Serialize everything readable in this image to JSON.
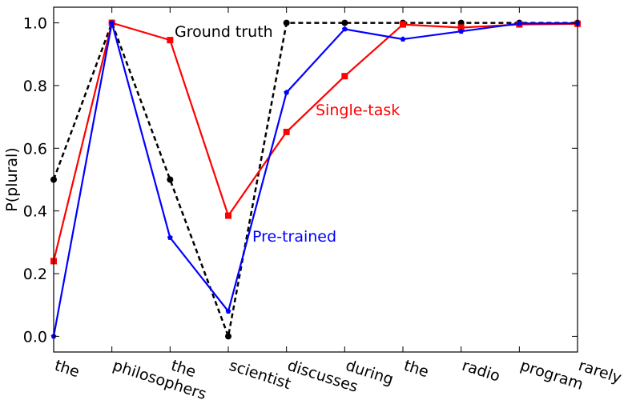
{
  "chart_data": {
    "type": "line",
    "ylabel": "P(plural)",
    "xlabel": "",
    "ylim": [
      -0.05,
      1.05
    ],
    "yticks": [
      0.0,
      0.2,
      0.4,
      0.6,
      0.8,
      1.0
    ],
    "ytick_labels": [
      "0.0",
      "0.2",
      "0.4",
      "0.6",
      "0.8",
      "1.0"
    ],
    "categories": [
      "the",
      "philosophers",
      "the",
      "scientist",
      "discusses",
      "during",
      "the",
      "radio",
      "program",
      "rarely"
    ],
    "grid": false,
    "legend": "none; series labelled inline",
    "series": [
      {
        "name": "Ground truth",
        "color": "#000000",
        "line_style": "dashed",
        "marker": "circle",
        "values": [
          0.5,
          1.0,
          0.5,
          0.0,
          1.0,
          1.0,
          1.0,
          1.0,
          1.0,
          1.0
        ]
      },
      {
        "name": "Single-task",
        "color": "#ff0000",
        "line_style": "solid",
        "marker": "square",
        "values": [
          0.24,
          1.0,
          0.945,
          0.385,
          0.652,
          0.83,
          0.995,
          0.985,
          0.995,
          0.997
        ]
      },
      {
        "name": "Pre-trained",
        "color": "#0000ff",
        "line_style": "solid",
        "marker": "pentagon",
        "values": [
          0.0,
          1.0,
          0.315,
          0.08,
          0.778,
          0.98,
          0.948,
          0.973,
          0.998,
          0.999
        ]
      }
    ]
  }
}
